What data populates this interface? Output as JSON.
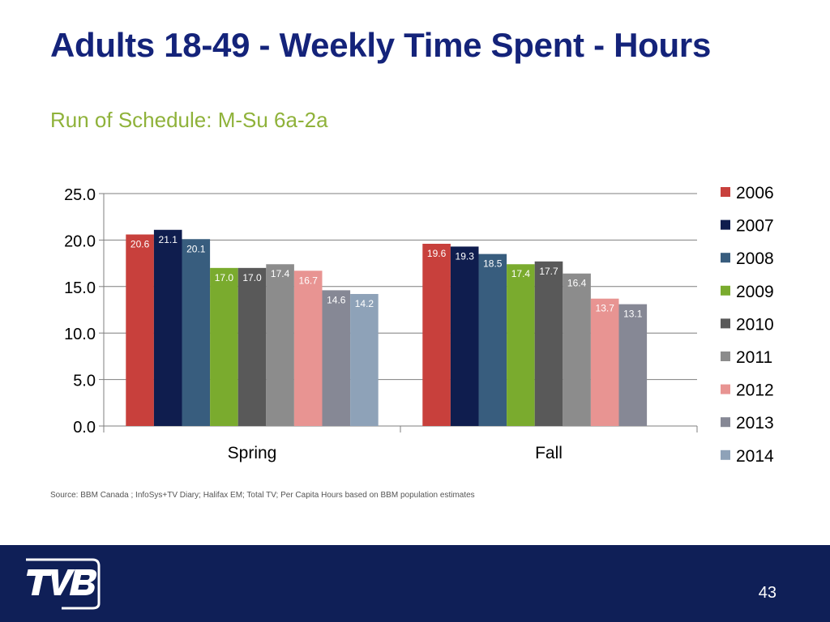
{
  "slide": {
    "title": "Adults 18-49 - Weekly Time Spent - Hours",
    "subtitle": "Run of Schedule: M-Su 6a-2a",
    "source": "Source: BBM Canada ; InfoSys+TV Diary; Halifax EM; Total TV; Per Capita Hours based on BBM population estimates",
    "page_number": "43"
  },
  "chart_data": {
    "type": "bar",
    "title": "",
    "xlabel": "",
    "ylabel": "",
    "categories": [
      "Spring",
      "Fall"
    ],
    "ylim": [
      0,
      25
    ],
    "yticks": [
      "0.0",
      "5.0",
      "10.0",
      "15.0",
      "20.0",
      "25.0"
    ],
    "ytick_values": [
      0,
      5,
      10,
      15,
      20,
      25
    ],
    "grid": true,
    "legend_position": "right",
    "series": [
      {
        "name": "2006",
        "color": "#c8403c",
        "values": [
          20.6,
          19.6
        ]
      },
      {
        "name": "2007",
        "color": "#0f1d4e",
        "values": [
          21.1,
          19.3
        ]
      },
      {
        "name": "2008",
        "color": "#385d7e",
        "values": [
          20.1,
          18.5
        ]
      },
      {
        "name": "2009",
        "color": "#7aab2e",
        "values": [
          17.0,
          17.4
        ]
      },
      {
        "name": "2010",
        "color": "#595959",
        "values": [
          17.0,
          17.7
        ]
      },
      {
        "name": "2011",
        "color": "#8c8c8c",
        "values": [
          17.4,
          16.4
        ]
      },
      {
        "name": "2012",
        "color": "#e89492",
        "values": [
          16.7,
          13.7
        ]
      },
      {
        "name": "2013",
        "color": "#868895",
        "values": [
          14.6,
          13.1
        ]
      },
      {
        "name": "2014",
        "color": "#8ea2b8",
        "values": [
          14.2,
          null
        ]
      }
    ]
  }
}
